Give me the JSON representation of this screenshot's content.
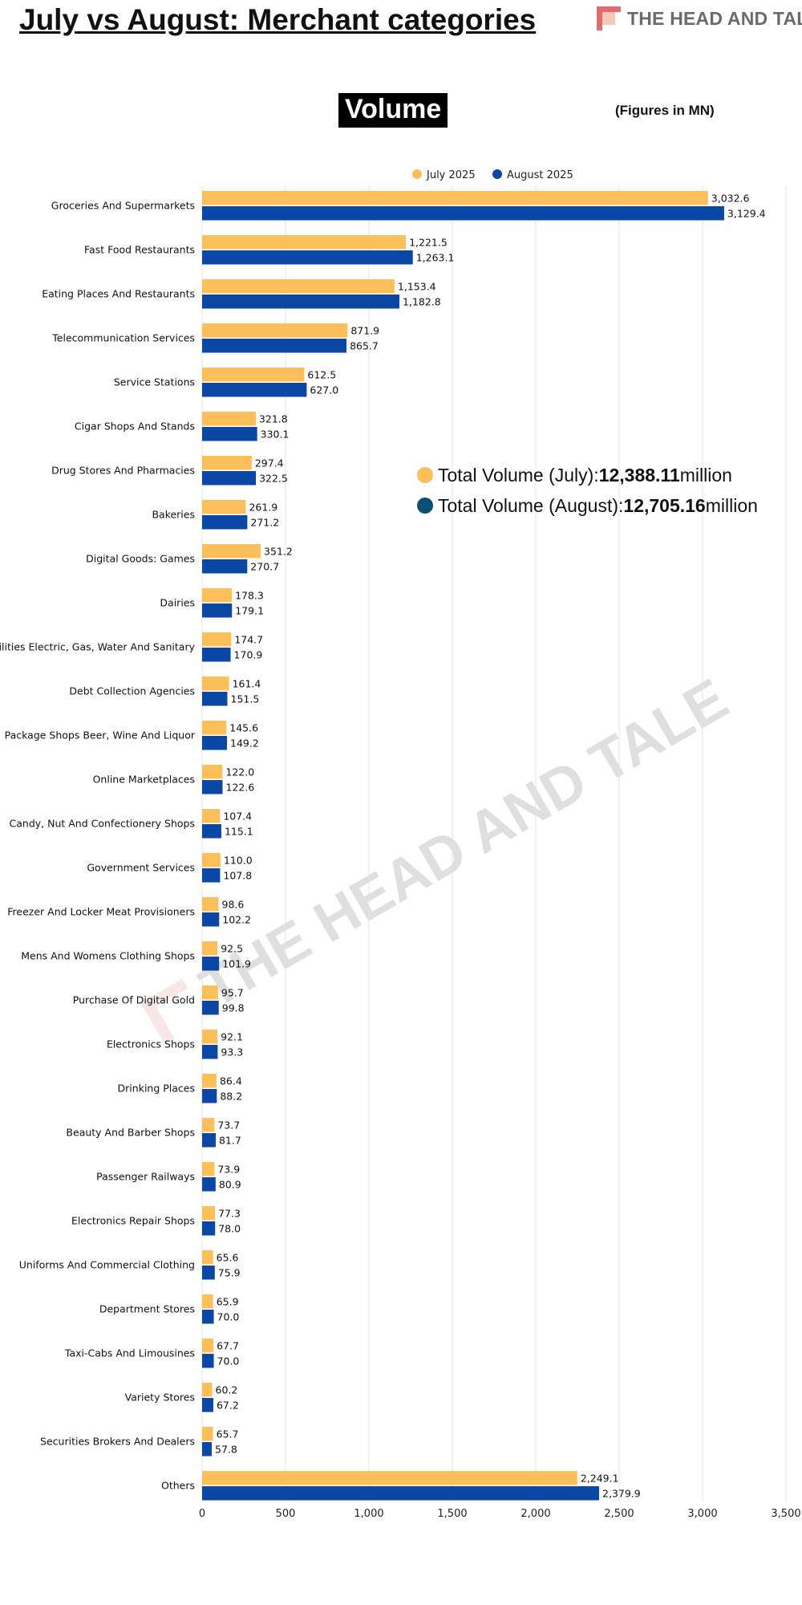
{
  "header": {
    "title": "July vs August: Merchant categories",
    "brand_name": "THE HEAD AND TALE",
    "section_title": "Volume",
    "figures_note": "(Figures in MN)",
    "watermark_text": "THE HEAD AND TALE"
  },
  "totals": {
    "july_label": "Total Volume (July): ",
    "july_value": "12,388.11",
    "july_unit": " million",
    "august_label": "Total Volume (August): ",
    "august_value": "12,705.16",
    "august_unit": " million"
  },
  "colors": {
    "july": "#FDBF5A",
    "august": "#0B47A5",
    "dot_august": "#0B4F73",
    "grid": "#e3e3e3"
  },
  "chart_data": {
    "type": "bar",
    "orientation": "horizontal",
    "xlim": [
      0,
      3500
    ],
    "xticks": [
      0,
      500,
      1000,
      1500,
      2000,
      2500,
      3000,
      3500
    ],
    "xtick_labels": [
      "0",
      "500",
      "1,000",
      "1,500",
      "2,000",
      "2,500",
      "3,000",
      "3,500"
    ],
    "grid": "vertical",
    "legend_position": "top-center",
    "categories": [
      "Groceries And Supermarkets",
      "Fast Food Restaurants",
      "Eating Places And Restaurants",
      "Telecommunication Services",
      "Service Stations",
      "Cigar Shops And Stands",
      "Drug Stores And Pharmacies",
      "Bakeries",
      "Digital Goods: Games",
      "Dairies",
      "Utilities Electric, Gas, Water And Sanitary",
      "Debt Collection Agencies",
      "Package Shops Beer, Wine And Liquor",
      "Online Marketplaces",
      "Candy, Nut And Confectionery Shops",
      "Government Services",
      "Freezer And Locker Meat Provisioners",
      "Mens And Womens Clothing Shops",
      "Purchase Of Digital Gold",
      "Electronics Shops",
      "Drinking Places",
      "Beauty And Barber Shops",
      "Passenger Railways",
      "Electronics Repair Shops",
      "Uniforms And Commercial Clothing",
      "Department Stores",
      "Taxi-Cabs And Limousines",
      "Variety Stores",
      "Securities Brokers And Dealers",
      "Others"
    ],
    "series": [
      {
        "name": "July 2025",
        "values": [
          3032.6,
          1221.5,
          1153.4,
          871.9,
          612.5,
          321.8,
          297.4,
          261.9,
          351.2,
          178.3,
          174.7,
          161.4,
          145.6,
          122.0,
          107.4,
          110.0,
          98.6,
          92.5,
          95.7,
          92.1,
          86.4,
          73.7,
          73.9,
          77.3,
          65.6,
          65.9,
          67.7,
          60.2,
          65.7,
          2249.1
        ],
        "labels": [
          "3,032.6",
          "1,221.5",
          "1,153.4",
          "871.9",
          "612.5",
          "321.8",
          "297.4",
          "261.9",
          "351.2",
          "178.3",
          "174.7",
          "161.4",
          "145.6",
          "122.0",
          "107.4",
          "110.0",
          "98.6",
          "92.5",
          "95.7",
          "92.1",
          "86.4",
          "73.7",
          "73.9",
          "77.3",
          "65.6",
          "65.9",
          "67.7",
          "60.2",
          "65.7",
          "2,249.1"
        ]
      },
      {
        "name": "August 2025",
        "values": [
          3129.4,
          1263.1,
          1182.8,
          865.7,
          627.0,
          330.1,
          322.5,
          271.2,
          270.7,
          179.1,
          170.9,
          151.5,
          149.2,
          122.6,
          115.1,
          107.8,
          102.2,
          101.9,
          99.8,
          93.3,
          88.2,
          81.7,
          80.9,
          78.0,
          75.9,
          70.0,
          70.0,
          67.2,
          57.8,
          2379.9
        ],
        "labels": [
          "3,129.4",
          "1,263.1",
          "1,182.8",
          "865.7",
          "627.0",
          "330.1",
          "322.5",
          "271.2",
          "270.7",
          "179.1",
          "170.9",
          "151.5",
          "149.2",
          "122.6",
          "115.1",
          "107.8",
          "102.2",
          "101.9",
          "99.8",
          "93.3",
          "88.2",
          "81.7",
          "80.9",
          "78.0",
          "75.9",
          "70.0",
          "70.0",
          "67.2",
          "57.8",
          "2,379.9"
        ]
      }
    ]
  }
}
